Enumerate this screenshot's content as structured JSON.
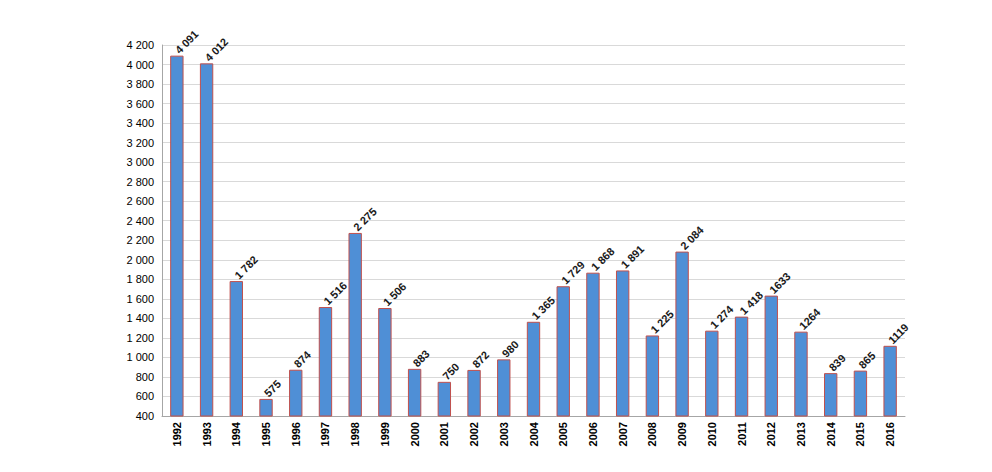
{
  "chart_data": {
    "type": "bar",
    "categories": [
      "1992",
      "1993",
      "1994",
      "1995",
      "1996",
      "1997",
      "1998",
      "1999",
      "2000",
      "2001",
      "2002",
      "2003",
      "2004",
      "2005",
      "2006",
      "2007",
      "2008",
      "2009",
      "2010",
      "2011",
      "2012",
      "2013",
      "2014",
      "2015",
      "2016"
    ],
    "values": [
      4091,
      4012,
      1782,
      575,
      874,
      1516,
      2275,
      1506,
      883,
      750,
      872,
      980,
      1365,
      1729,
      1868,
      1891,
      1225,
      2084,
      1274,
      1418,
      1633,
      1264,
      839,
      865,
      1119
    ],
    "value_labels": [
      "4 091",
      "4 012",
      "1 782",
      "575",
      "874",
      "1 516",
      "2 275",
      "1 506",
      "883",
      "750",
      "872",
      "980",
      "1 365",
      "1 729",
      "1 868",
      "1 891",
      "1 225",
      "2 084",
      "1 274",
      "1 418",
      "1633",
      "1264",
      "839",
      "865",
      "1119"
    ],
    "color": "#4f8fd6",
    "ylim": [
      400,
      4200
    ],
    "yticks": [
      400,
      600,
      800,
      {
        "value": 1000,
        "label": "1 000"
      },
      {
        "value": 1200,
        "label": "1 200"
      },
      {
        "value": 1400,
        "label": "1 400"
      },
      {
        "value": 1600,
        "label": "1 600"
      },
      {
        "value": 1800,
        "label": "1 800"
      },
      {
        "value": 2000,
        "label": "2 000"
      },
      {
        "value": 2200,
        "label": "2 200"
      },
      {
        "value": 2400,
        "label": "2 400"
      },
      {
        "value": 2600,
        "label": "2 600"
      },
      {
        "value": 2800,
        "label": "2 800"
      },
      {
        "value": 3000,
        "label": "3 000"
      },
      {
        "value": 3200,
        "label": "3 200"
      },
      {
        "value": 3400,
        "label": "3 400"
      },
      {
        "value": 3600,
        "label": "3 600"
      },
      {
        "value": 3800,
        "label": "3 800"
      },
      {
        "value": 4000,
        "label": "4 000"
      },
      {
        "value": 4200,
        "label": "4 200"
      }
    ],
    "grid": true,
    "data_labels": true
  }
}
